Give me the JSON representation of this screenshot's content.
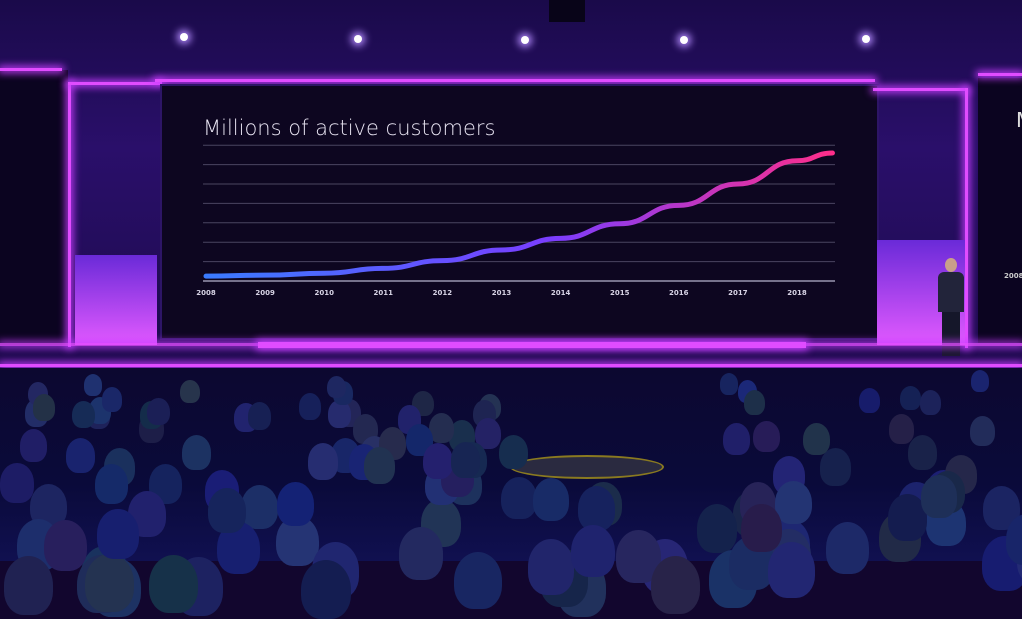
{
  "chart_data": {
    "type": "line",
    "title": "Millions of active customers",
    "xlabel": "",
    "ylabel": "",
    "categories": [
      "2008",
      "2009",
      "2010",
      "2011",
      "2012",
      "2013",
      "2014",
      "2015",
      "2016",
      "2017",
      "2018"
    ],
    "x": [
      2008,
      2009,
      2010,
      2011,
      2012,
      2013,
      2014,
      2015,
      2016,
      2017,
      2018,
      2018.6
    ],
    "values": [
      0.25,
      0.3,
      0.4,
      0.65,
      1.05,
      1.6,
      2.2,
      2.95,
      3.9,
      5.0,
      6.2,
      6.6
    ],
    "ylim": [
      0,
      7
    ],
    "xlim": [
      2008,
      2018.6
    ],
    "grid": true,
    "gradient_colors": [
      "#3a7bff",
      "#7a3dff",
      "#ff2e8a"
    ]
  },
  "side_screen": {
    "left_label": "",
    "right_partial_title": "M",
    "right_partial_tick": "2008"
  }
}
